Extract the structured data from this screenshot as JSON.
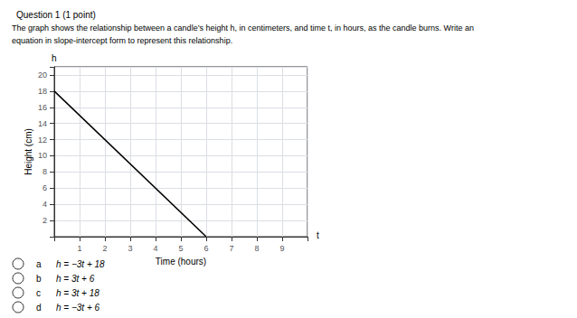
{
  "chart_data": {
    "type": "line",
    "title": "Question 1 (1 point)",
    "subtitle": [
      "The graph shows the relationship between a candle’s height h, in centimeters, and time t, in hours, as the candle burns. Write an",
      "equation in slope-intercept form to represent this relationship."
    ],
    "xlabel": "Time (hours)",
    "ylabel": "Height (cm)",
    "annotations": [
      "t",
      "h"
    ],
    "choices": [
      {
        "label": "a",
        "text": "h = −3t + 18"
      },
      {
        "label": "b",
        "text": "h = 3t + 6"
      },
      {
        "label": "c",
        "text": "h = 3t + 18"
      },
      {
        "label": "d",
        "text": "h = −3t + 6"
      }
    ],
    "x": [
      0,
      6
    ],
    "values": [
      18,
      0
    ],
    "color": "#000000",
    "xlim": [
      0,
      10
    ],
    "ylim": [
      0,
      21
    ],
    "xticks": [
      1,
      2,
      3,
      4,
      5,
      6,
      7,
      8,
      9
    ],
    "yticks": [
      2,
      4,
      6,
      8,
      10,
      12,
      14,
      16,
      18,
      20
    ],
    "grid": true
  }
}
